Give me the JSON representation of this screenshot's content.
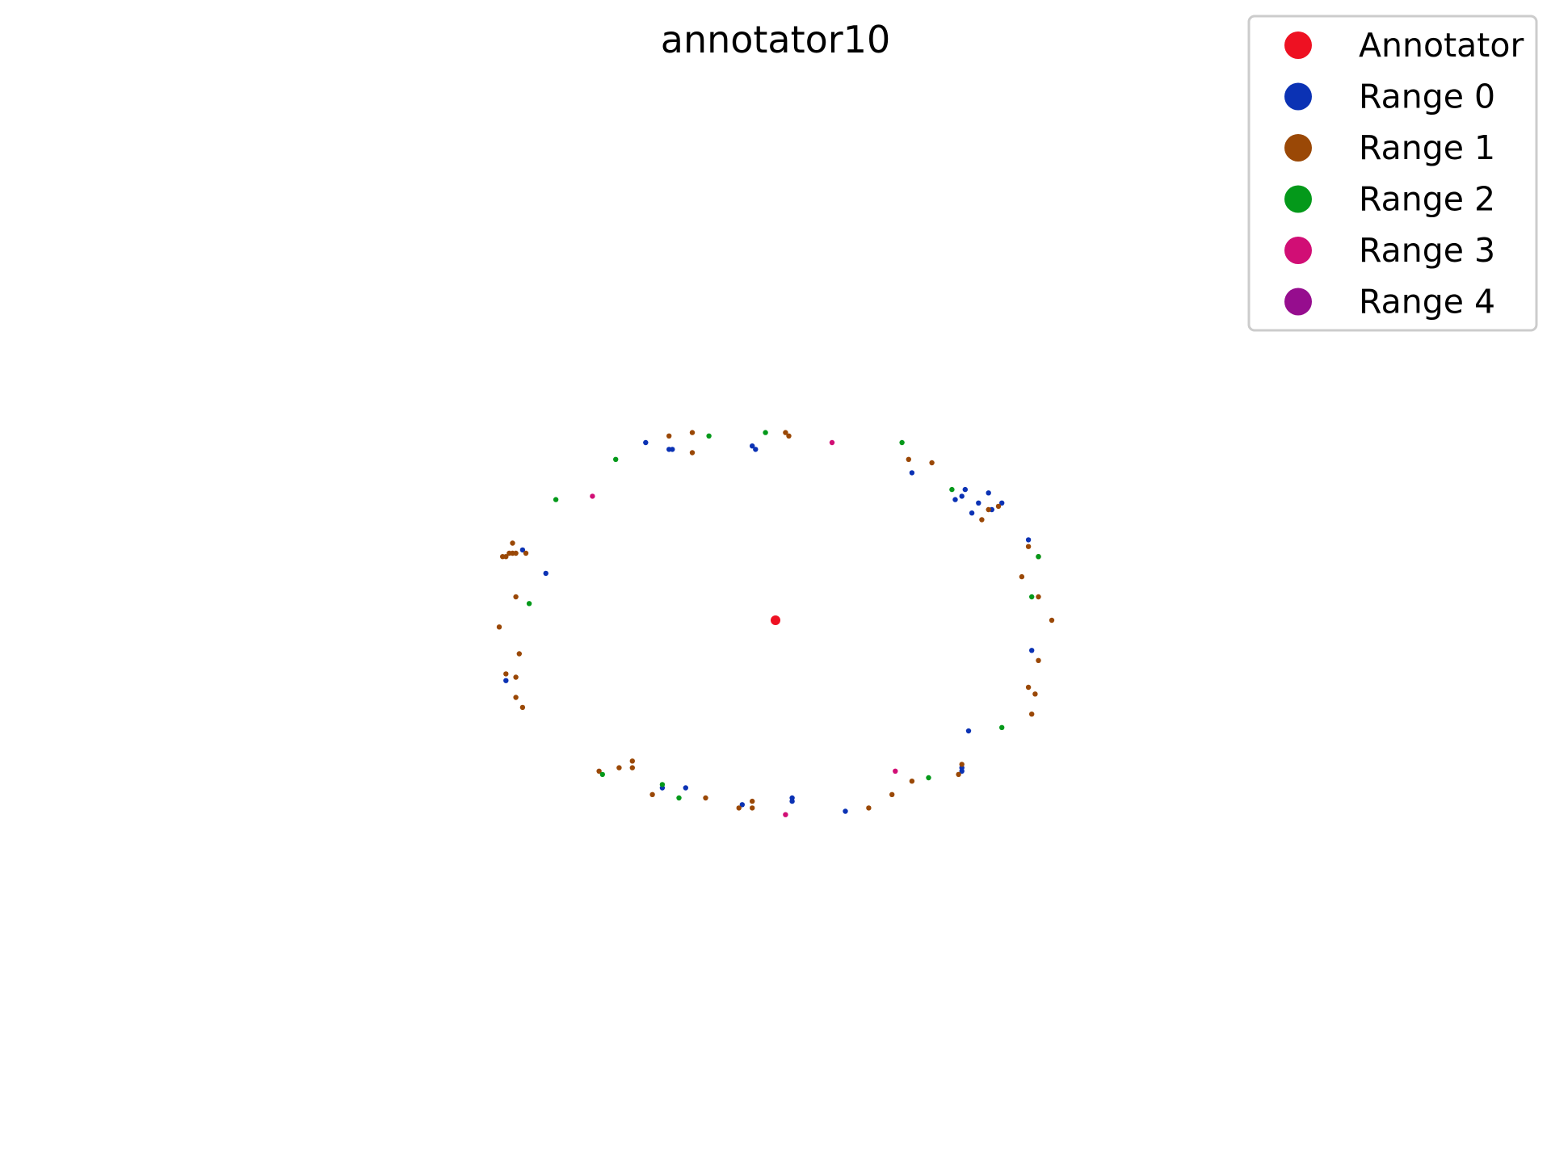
{
  "chart_data": {
    "type": "scatter",
    "title": "annotator10",
    "xlabel": "",
    "ylabel": "",
    "axes_visible": false,
    "grid": false,
    "xlim": [
      -1.0,
      1.0
    ],
    "ylim": [
      -1.0,
      1.0
    ],
    "legend_position": "top-right",
    "series": [
      {
        "name": "Annotator",
        "color": "#ee1122",
        "points": [
          [
            0.0,
            0.0
          ]
        ]
      },
      {
        "name": "Range 0",
        "color": "#0b32b4",
        "points": [
          [
            -0.39,
            0.53
          ],
          [
            -0.32,
            0.51
          ],
          [
            -0.31,
            0.51
          ],
          [
            -0.07,
            0.52
          ],
          [
            -0.06,
            0.51
          ],
          [
            0.41,
            0.44
          ],
          [
            0.57,
            0.39
          ],
          [
            0.56,
            0.37
          ],
          [
            0.54,
            0.36
          ],
          [
            0.64,
            0.38
          ],
          [
            0.61,
            0.35
          ],
          [
            0.68,
            0.35
          ],
          [
            0.65,
            0.33
          ],
          [
            0.59,
            0.32
          ],
          [
            0.76,
            0.24
          ],
          [
            -0.76,
            0.21
          ],
          [
            -0.69,
            0.14
          ],
          [
            -0.81,
            -0.18
          ],
          [
            0.77,
            -0.09
          ],
          [
            0.58,
            -0.33
          ],
          [
            0.56,
            -0.44
          ],
          [
            0.56,
            -0.45
          ],
          [
            -0.34,
            -0.5
          ],
          [
            -0.27,
            -0.5
          ],
          [
            -0.1,
            -0.55
          ],
          [
            0.05,
            -0.53
          ],
          [
            0.05,
            -0.54
          ],
          [
            0.21,
            -0.57
          ]
        ]
      },
      {
        "name": "Range 1",
        "color": "#9a4806",
        "points": [
          [
            -0.32,
            0.55
          ],
          [
            -0.25,
            0.56
          ],
          [
            0.03,
            0.56
          ],
          [
            0.04,
            0.55
          ],
          [
            -0.25,
            0.5
          ],
          [
            0.4,
            0.48
          ],
          [
            0.47,
            0.47
          ],
          [
            0.64,
            0.33
          ],
          [
            0.67,
            0.34
          ],
          [
            0.62,
            0.3
          ],
          [
            0.76,
            0.22
          ],
          [
            0.79,
            0.19
          ],
          [
            0.74,
            0.13
          ],
          [
            0.79,
            0.07
          ],
          [
            0.83,
            0.0
          ],
          [
            0.79,
            -0.12
          ],
          [
            0.76,
            -0.2
          ],
          [
            0.78,
            -0.22
          ],
          [
            0.77,
            -0.28
          ],
          [
            0.56,
            -0.43
          ],
          [
            0.55,
            -0.46
          ],
          [
            0.41,
            -0.48
          ],
          [
            0.35,
            -0.52
          ],
          [
            0.28,
            -0.56
          ],
          [
            -0.79,
            0.23
          ],
          [
            -0.79,
            0.2
          ],
          [
            -0.8,
            0.2
          ],
          [
            -0.78,
            0.2
          ],
          [
            -0.82,
            0.19
          ],
          [
            -0.81,
            0.19
          ],
          [
            -0.75,
            0.2
          ],
          [
            -0.78,
            0.07
          ],
          [
            -0.83,
            -0.02
          ],
          [
            -0.77,
            -0.1
          ],
          [
            -0.81,
            -0.16
          ],
          [
            -0.78,
            -0.17
          ],
          [
            -0.78,
            -0.23
          ],
          [
            -0.76,
            -0.26
          ],
          [
            -0.53,
            -0.45
          ],
          [
            -0.47,
            -0.44
          ],
          [
            -0.43,
            -0.42
          ],
          [
            -0.43,
            -0.44
          ],
          [
            -0.37,
            -0.52
          ],
          [
            -0.21,
            -0.53
          ],
          [
            -0.11,
            -0.56
          ],
          [
            -0.07,
            -0.56
          ],
          [
            -0.07,
            -0.54
          ]
        ]
      },
      {
        "name": "Range 2",
        "color": "#04991a",
        "points": [
          [
            -0.48,
            0.48
          ],
          [
            -0.2,
            0.55
          ],
          [
            -0.03,
            0.56
          ],
          [
            0.38,
            0.53
          ],
          [
            0.53,
            0.39
          ],
          [
            -0.66,
            0.36
          ],
          [
            0.79,
            0.19
          ],
          [
            0.77,
            0.07
          ],
          [
            -0.74,
            0.05
          ],
          [
            0.68,
            -0.32
          ],
          [
            0.46,
            -0.47
          ],
          [
            -0.52,
            -0.46
          ],
          [
            -0.34,
            -0.49
          ],
          [
            -0.29,
            -0.53
          ]
        ]
      },
      {
        "name": "Range 3",
        "color": "#d10e75",
        "points": [
          [
            0.17,
            0.53
          ],
          [
            -0.55,
            0.37
          ],
          [
            0.36,
            -0.45
          ],
          [
            0.03,
            -0.58
          ]
        ]
      },
      {
        "name": "Range 4",
        "color": "#960d8e",
        "points": []
      }
    ]
  }
}
